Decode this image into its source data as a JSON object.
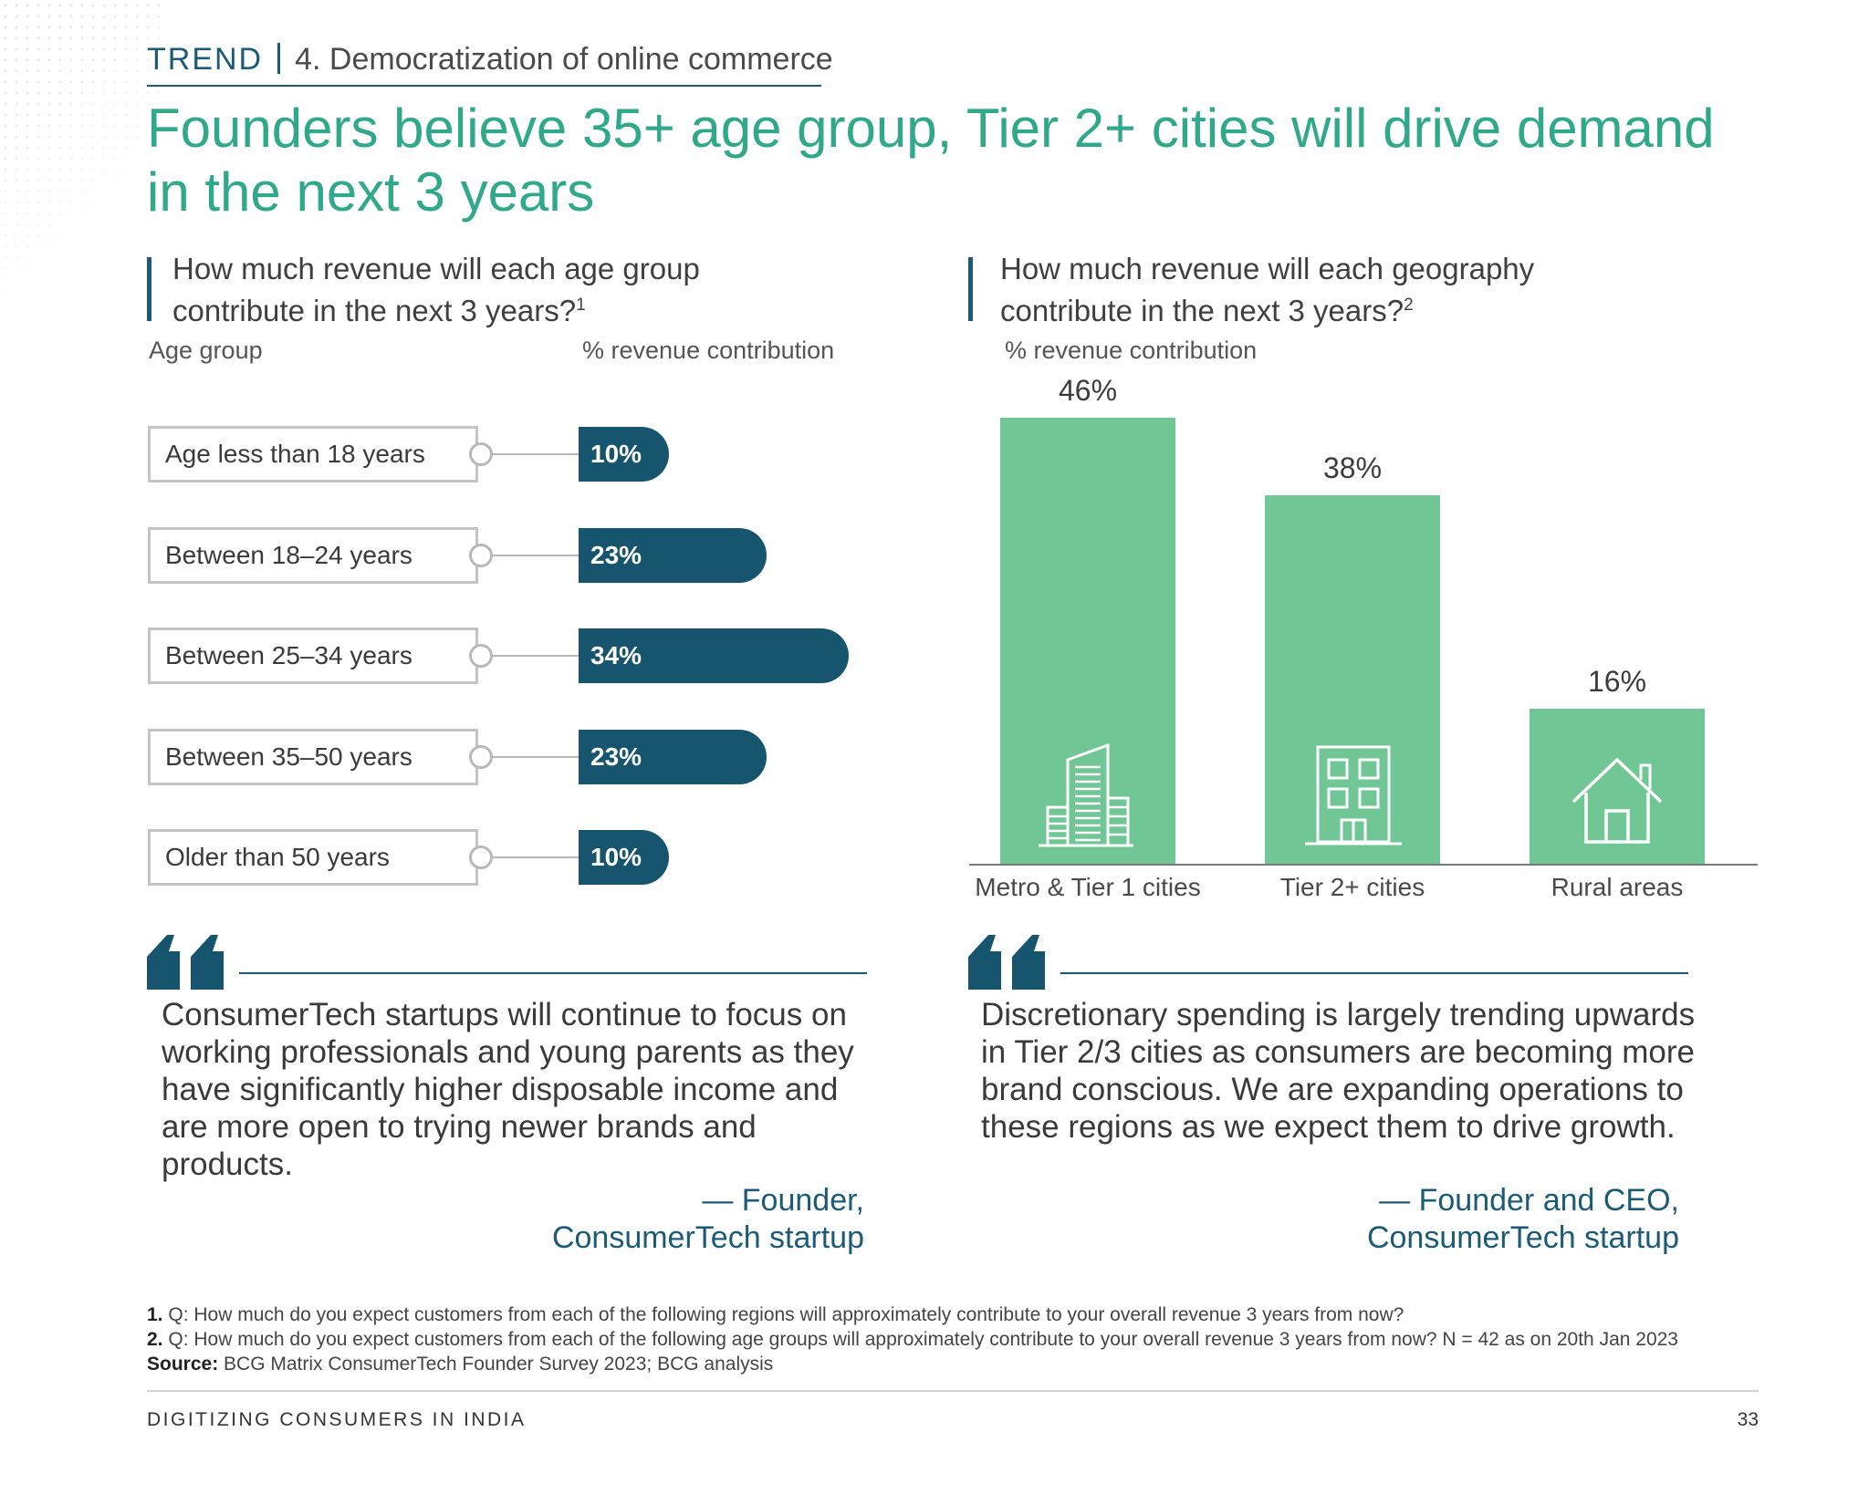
{
  "header": {
    "trend_label": "TREND",
    "section_label": "4. Democratization of online commerce"
  },
  "title": "Founders believe 35+ age group, Tier 2+ cities will drive demand in the next 3 years",
  "left_chart": {
    "question": "How much revenue will each age group contribute in the next 3 years?",
    "footnote_ref": "1",
    "col_label_left": "Age group",
    "col_label_right": "% revenue contribution"
  },
  "right_chart": {
    "question": "How much revenue will each geography contribute in the next 3 years?",
    "footnote_ref": "2",
    "axis_label": "% revenue contribution"
  },
  "chart_data": [
    {
      "type": "bar",
      "orientation": "horizontal",
      "title": "How much revenue will each age group contribute in the next 3 years?",
      "xlabel": "% revenue contribution",
      "ylabel": "Age group",
      "categories": [
        "Age less than 18 years",
        "Between 18–24 years",
        "Between 25–34 years",
        "Between 35–50 years",
        "Older than 50 years"
      ],
      "values": [
        10,
        23,
        34,
        23,
        10
      ],
      "value_labels": [
        "10%",
        "23%",
        "34%",
        "23%",
        "10%"
      ],
      "color": "#17556f"
    },
    {
      "type": "bar",
      "orientation": "vertical",
      "title": "How much revenue will each geography contribute in the next 3 years?",
      "ylabel": "% revenue contribution",
      "categories": [
        "Metro & Tier 1 cities",
        "Tier 2+ cities",
        "Rural areas"
      ],
      "values": [
        46,
        38,
        16
      ],
      "value_labels": [
        "46%",
        "38%",
        "16%"
      ],
      "icons": [
        "skyscraper-icon",
        "office-building-icon",
        "house-icon"
      ],
      "color": "#70c795"
    }
  ],
  "quotes": [
    {
      "text": "ConsumerTech startups will continue to focus on working professionals and young parents as they have significantly higher disposable income and are more open to trying newer brands and products.",
      "attribution_line1": "— Founder,",
      "attribution_line2": "ConsumerTech startup"
    },
    {
      "text": "Discretionary spending is largely trending upwards in Tier 2/3 cities as consumers are becoming more brand conscious. We are expanding operations to these regions as we expect them to drive growth.",
      "attribution_line1": "— Founder and CEO,",
      "attribution_line2": "ConsumerTech startup"
    }
  ],
  "footnotes": {
    "note1_num": "1.",
    "note1": "Q: How much do you expect customers from each of the following regions will approximately contribute to your overall revenue 3 years from now?",
    "note2_num": "2.",
    "note2": "Q: How much do you expect customers from each of the following age groups will approximately contribute to your overall revenue 3 years from now? N = 42 as on 20th Jan 2023",
    "source_label": "Source:",
    "source": "BCG Matrix ConsumerTech Founder Survey 2023; BCG analysis"
  },
  "footer": {
    "publication": "DIGITIZING CONSUMERS IN INDIA",
    "page_number": "33"
  }
}
